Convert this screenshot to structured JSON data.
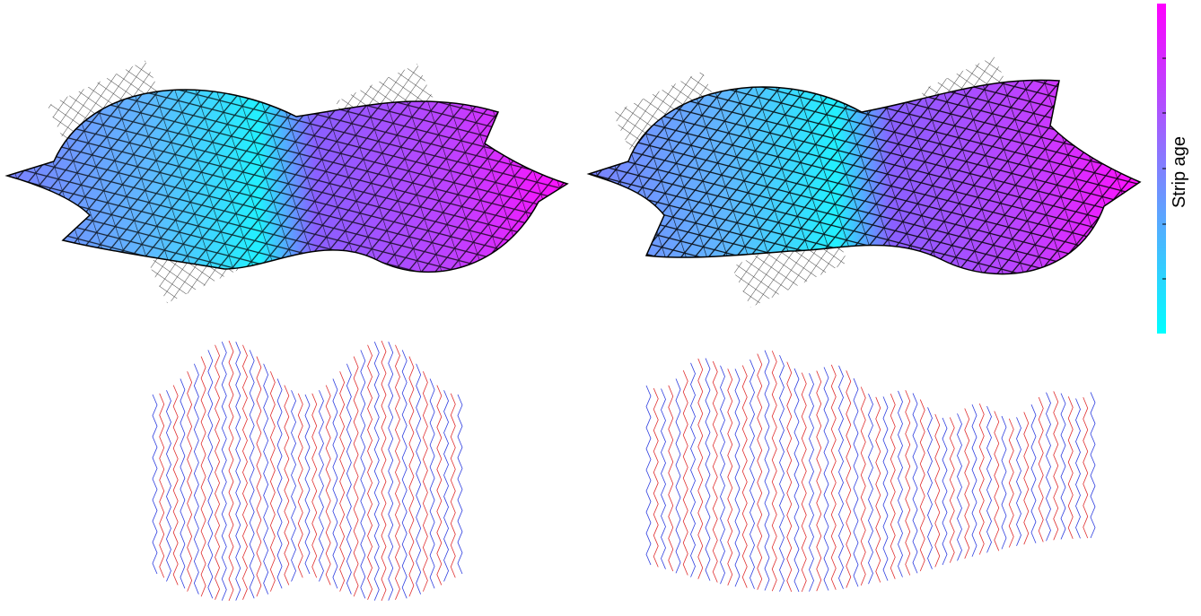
{
  "colorbar": {
    "label": "Strip age"
  }
}
